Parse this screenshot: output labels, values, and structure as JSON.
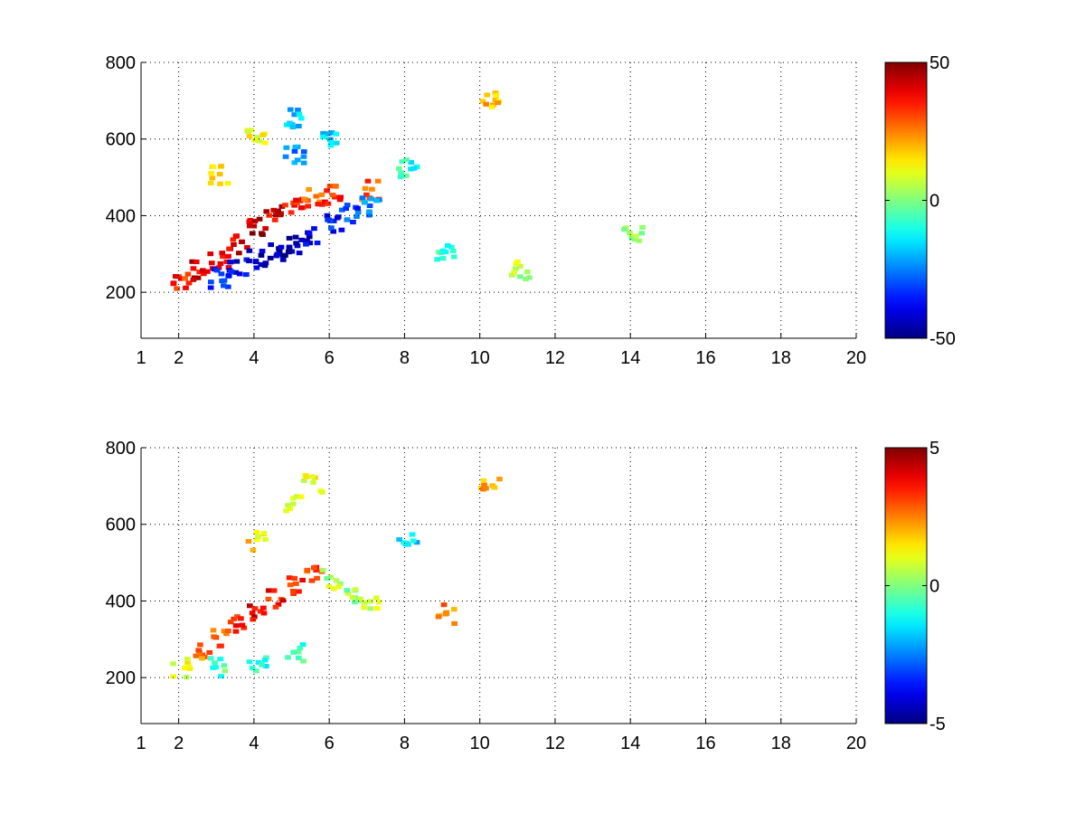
{
  "chart_data": [
    {
      "type": "heatmap",
      "title": "",
      "xlabel": "",
      "ylabel": "",
      "xlim": [
        1,
        20
      ],
      "ylim": [
        80,
        800
      ],
      "xticks": [
        1,
        2,
        4,
        6,
        8,
        10,
        12,
        14,
        16,
        18,
        20
      ],
      "yticks": [
        200,
        400,
        600,
        800
      ],
      "colorbar": {
        "colormap": "jet",
        "range": [
          -50,
          50
        ],
        "ticks": [
          -50,
          0,
          50
        ]
      },
      "grid": true,
      "cells": [
        [
          2,
          220,
          34
        ],
        [
          2.5,
          250,
          40
        ],
        [
          3,
          280,
          38
        ],
        [
          3.5,
          320,
          42
        ],
        [
          4,
          360,
          45
        ],
        [
          4.5,
          400,
          40
        ],
        [
          5,
          420,
          35
        ],
        [
          5.5,
          440,
          30
        ],
        [
          6,
          450,
          32
        ],
        [
          7,
          460,
          28
        ],
        [
          3,
          230,
          -30
        ],
        [
          3.5,
          260,
          -40
        ],
        [
          4,
          280,
          -45
        ],
        [
          4.5,
          300,
          -48
        ],
        [
          5,
          320,
          -46
        ],
        [
          5.5,
          340,
          -42
        ],
        [
          6,
          370,
          -36
        ],
        [
          6.5,
          400,
          -30
        ],
        [
          7,
          420,
          -25
        ],
        [
          3,
          500,
          15
        ],
        [
          4,
          600,
          12
        ],
        [
          5,
          650,
          -20
        ],
        [
          5,
          550,
          -25
        ],
        [
          6,
          600,
          -15
        ],
        [
          8,
          520,
          -10
        ],
        [
          9,
          300,
          -8
        ],
        [
          10.2,
          700,
          18
        ],
        [
          11,
          250,
          5
        ],
        [
          14,
          350,
          3
        ]
      ]
    },
    {
      "type": "heatmap",
      "title": "",
      "xlabel": "",
      "ylabel": "",
      "xlim": [
        1,
        20
      ],
      "ylim": [
        80,
        800
      ],
      "xticks": [
        1,
        2,
        4,
        6,
        8,
        10,
        12,
        14,
        16,
        18,
        20
      ],
      "yticks": [
        200,
        400,
        600,
        800
      ],
      "colorbar": {
        "colormap": "jet",
        "range": [
          -5,
          5
        ],
        "ticks": [
          -5,
          0,
          5
        ]
      },
      "grid": true,
      "cells": [
        [
          2,
          220,
          1
        ],
        [
          2.5,
          260,
          2.5
        ],
        [
          3,
          300,
          3
        ],
        [
          3.5,
          330,
          3.5
        ],
        [
          4,
          360,
          3.8
        ],
        [
          4.5,
          400,
          3.5
        ],
        [
          5,
          430,
          3.2
        ],
        [
          5.5,
          470,
          3
        ],
        [
          3,
          220,
          -0.5
        ],
        [
          4,
          230,
          -0.8
        ],
        [
          5,
          260,
          -0.6
        ],
        [
          4,
          550,
          1.5
        ],
        [
          5,
          650,
          1
        ],
        [
          5.5,
          700,
          1.2
        ],
        [
          6,
          450,
          0.5
        ],
        [
          6.5,
          400,
          0.3
        ],
        [
          7,
          380,
          0.8
        ],
        [
          8,
          550,
          -1.5
        ],
        [
          9,
          360,
          2.5
        ],
        [
          10.2,
          700,
          2
        ]
      ]
    }
  ]
}
